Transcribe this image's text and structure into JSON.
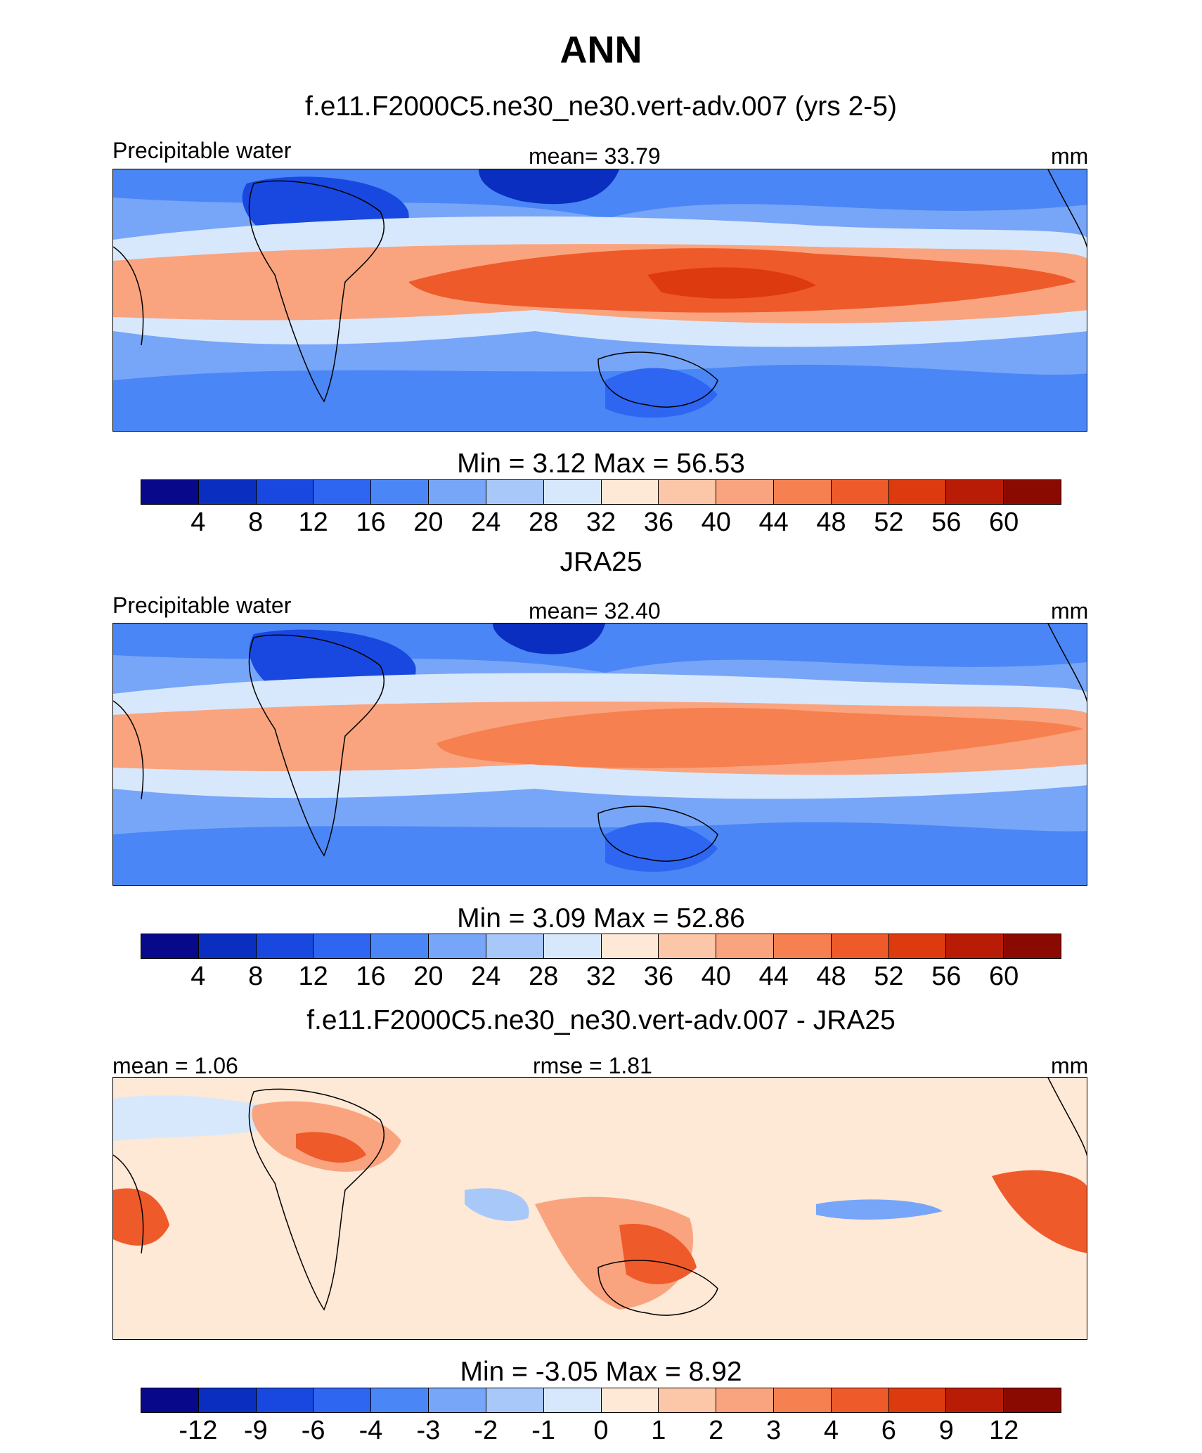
{
  "main_title": "ANN",
  "palette_colors": [
    "#08088a",
    "#0a2ec0",
    "#1848e0",
    "#2e66f2",
    "#4a86f5",
    "#77a6f8",
    "#a9c8fa",
    "#d8e8fc",
    "#fee8d6",
    "#fcc7a8",
    "#f9a47e",
    "#f6804f",
    "#ef5a2a",
    "#dd3a0f",
    "#b81c06",
    "#8a0a02"
  ],
  "chart_data": [
    {
      "type": "heatmap",
      "title": "f.e11.F2000C5.ne30_ne30.vert-adv.007 (yrs 2-5)",
      "left_label": "Precipitable water",
      "center_label": "mean=  33.79",
      "units": "mm",
      "minmax_label": "Min =    3.12 Max =  56.53",
      "min": 3.12,
      "max": 56.53,
      "mean": 33.79,
      "levels": [
        "4",
        "8",
        "12",
        "16",
        "20",
        "24",
        "28",
        "32",
        "36",
        "40",
        "44",
        "48",
        "52",
        "56",
        "60"
      ]
    },
    {
      "type": "heatmap",
      "title": "JRA25",
      "left_label": "Precipitable water",
      "center_label": "mean=  32.40",
      "units": "mm",
      "minmax_label": "Min =    3.09 Max =  52.86",
      "min": 3.09,
      "max": 52.86,
      "mean": 32.4,
      "levels": [
        "4",
        "8",
        "12",
        "16",
        "20",
        "24",
        "28",
        "32",
        "36",
        "40",
        "44",
        "48",
        "52",
        "56",
        "60"
      ]
    },
    {
      "type": "heatmap",
      "title": "f.e11.F2000C5.ne30_ne30.vert-adv.007 - JRA25",
      "left_label": "mean =    1.06",
      "center_label": "rmse =    1.81",
      "units": "mm",
      "minmax_label": "Min =  -3.05 Max =    8.92",
      "min": -3.05,
      "max": 8.92,
      "mean": 1.06,
      "rmse": 1.81,
      "levels": [
        "-12",
        "-9",
        "-6",
        "-4",
        "-3",
        "-2",
        "-1",
        "0",
        "1",
        "2",
        "3",
        "4",
        "6",
        "9",
        "12"
      ]
    }
  ]
}
